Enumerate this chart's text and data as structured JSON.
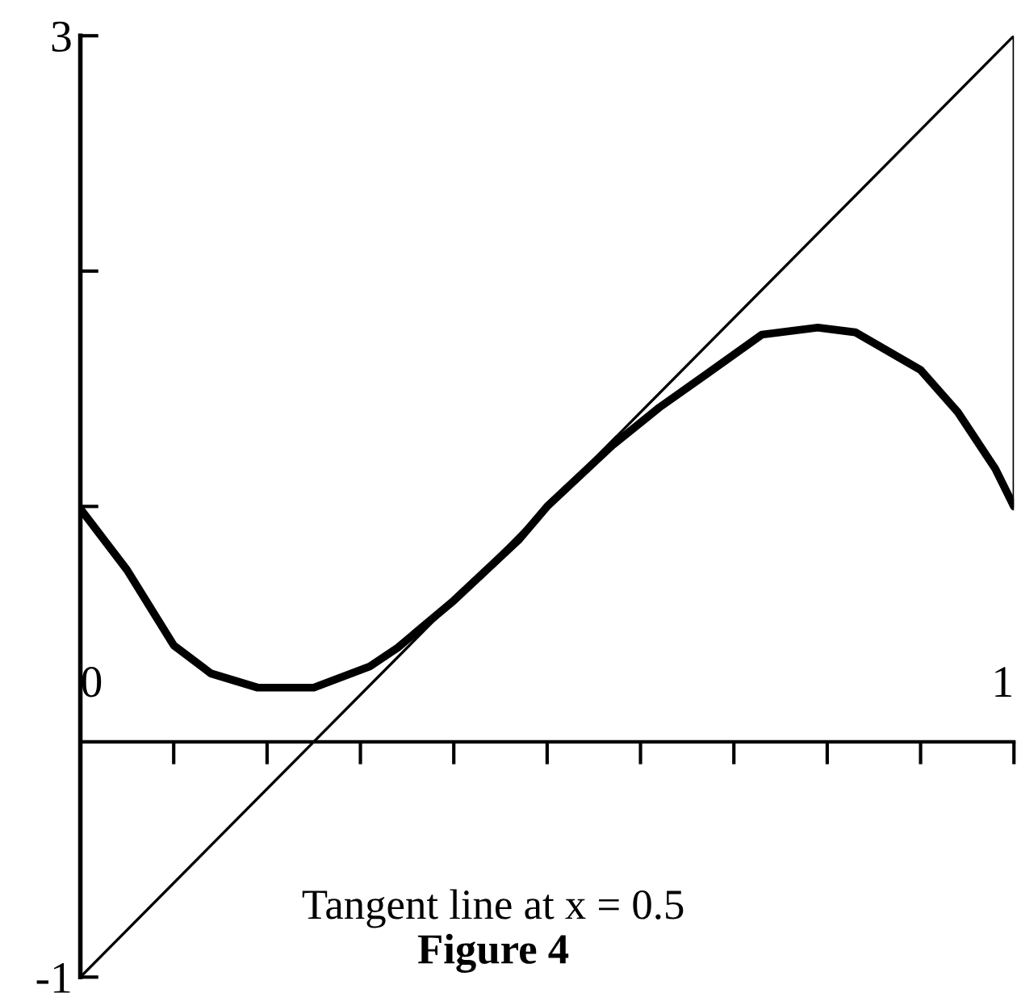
{
  "chart_data": {
    "type": "line",
    "annotations": [
      "Tangent line at x = 0.5",
      "Figure 4"
    ],
    "series": [
      {
        "color": "#000000",
        "x": [
          0,
          0.05,
          0.1,
          0.14,
          0.19,
          0.25,
          0.31,
          0.34,
          0.4,
          0.47,
          0.5,
          0.57,
          0.62,
          0.67,
          0.73,
          0.79,
          0.83,
          0.9,
          0.94,
          0.98,
          1.0
        ],
        "values": [
          0.99,
          0.73,
          0.41,
          0.29,
          0.23,
          0.23,
          0.32,
          0.4,
          0.6,
          0.86,
          1.0,
          1.26,
          1.42,
          1.56,
          1.73,
          1.76,
          1.74,
          1.58,
          1.4,
          1.16,
          1.0
        ]
      },
      {
        "color": "#000000",
        "x": [
          0,
          1,
          1
        ],
        "values": [
          -1,
          3,
          1
        ]
      }
    ],
    "xlim": [
      0,
      1
    ],
    "ylim": [
      -1,
      3
    ],
    "xticks": [
      0,
      {
        "value": 0.1,
        "label": null
      },
      {
        "value": 0.2,
        "label": null
      },
      {
        "value": 0.3,
        "label": null
      },
      {
        "value": 0.4,
        "label": null
      },
      {
        "value": 0.5,
        "label": null
      },
      {
        "value": 0.6,
        "label": null
      },
      {
        "value": 0.7,
        "label": null
      },
      {
        "value": 0.8,
        "label": null
      },
      {
        "value": 0.9,
        "label": null
      },
      1
    ],
    "yticks": [
      -1,
      {
        "value": 1,
        "label": null
      },
      {
        "value": 2,
        "label": null
      },
      3
    ],
    "grid": false,
    "legend": false,
    "marker": "none",
    "line_style": "solid"
  }
}
